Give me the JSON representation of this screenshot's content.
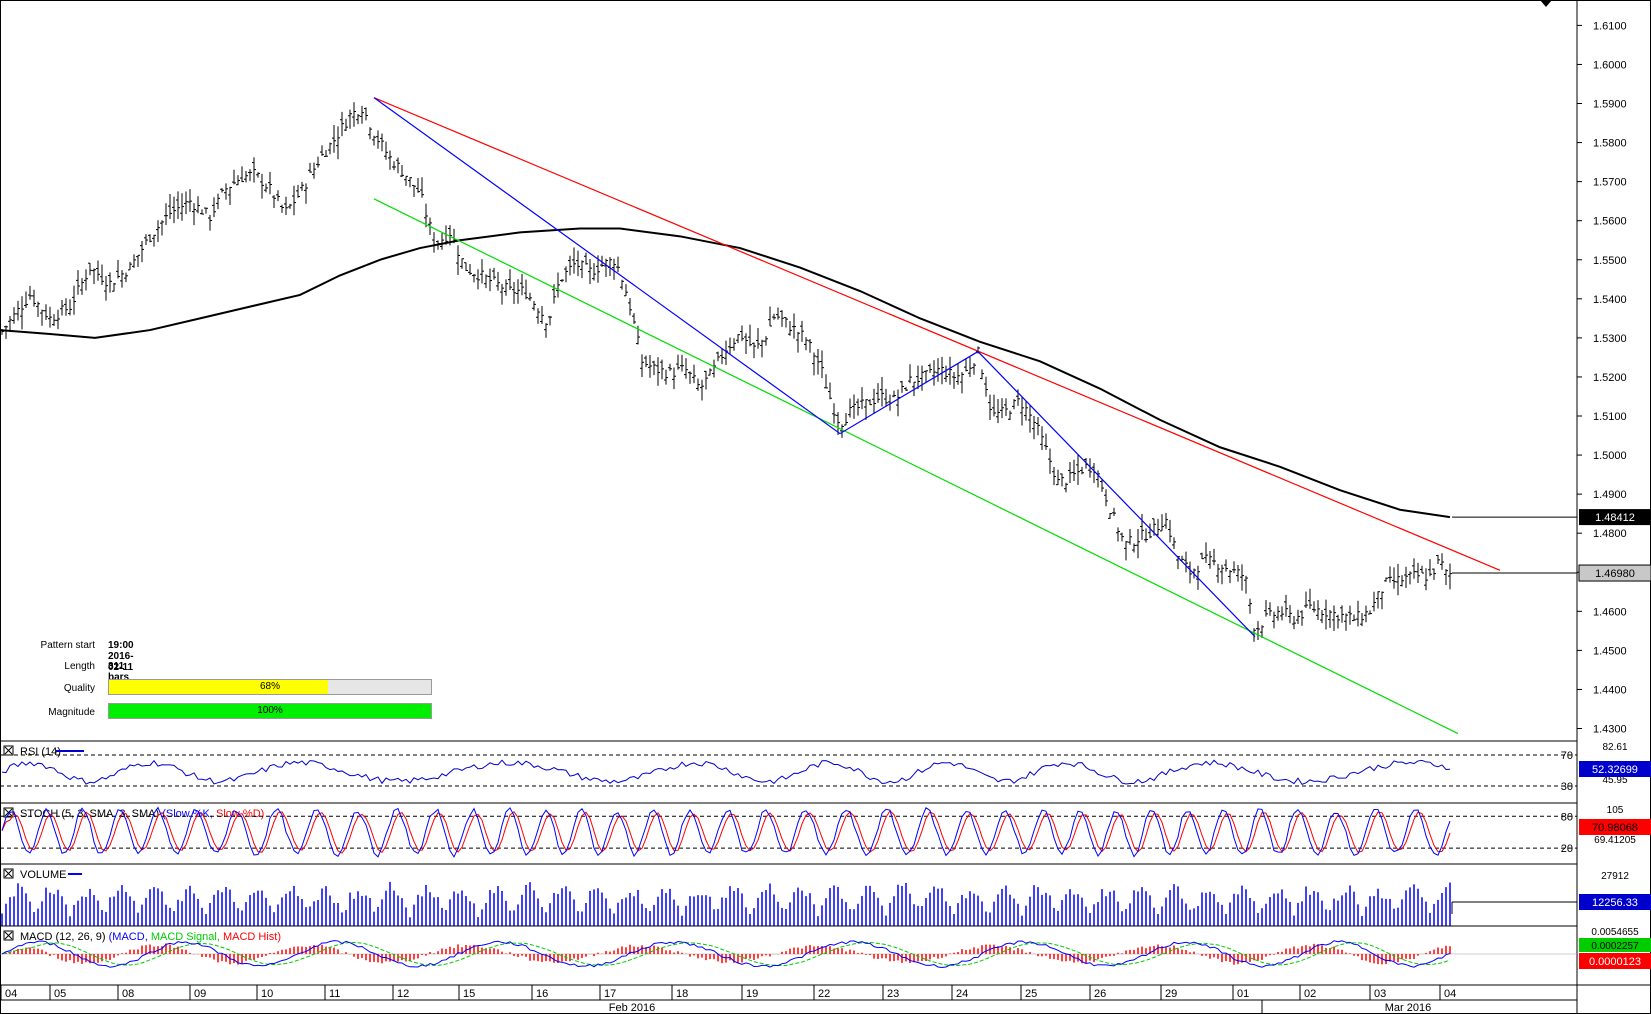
{
  "pattern_info": {
    "start_label": "Pattern start",
    "start_value": "19:00 2016-02-11",
    "length_label": "Length",
    "length_value": "311 bars",
    "quality_label": "Quality",
    "quality_text": "68%",
    "quality_fraction": 0.68,
    "magnitude_label": "Magnitude",
    "magnitude_text": "100%",
    "magnitude_fraction": 1.0
  },
  "chart_data": {
    "type": "candlestick",
    "price_axis": {
      "ylim": [
        1.4268,
        1.6165
      ],
      "ticks": [
        "1.6100",
        "1.6000",
        "1.5900",
        "1.5800",
        "1.5700",
        "1.5600",
        "1.5500",
        "1.5400",
        "1.5300",
        "1.5200",
        "1.5100",
        "1.5000",
        "1.4900",
        "1.4800",
        "1.4700",
        "1.4600",
        "1.4500",
        "1.4400",
        "1.4300"
      ],
      "ma_label": "1.48412",
      "ma_value": 1.48412,
      "last_label": "1.46980",
      "last_value": 1.4698
    },
    "x_axis": {
      "day_labels": [
        "04",
        "05",
        "08",
        "09",
        "10",
        "11",
        "12",
        "15",
        "16",
        "17",
        "18",
        "19",
        "22",
        "23",
        "24",
        "25",
        "26",
        "29",
        "01",
        "02",
        "03",
        "04"
      ],
      "month_labels": [
        "Feb 2016",
        "Mar 2016"
      ]
    },
    "price_path": [
      [
        0,
        1.531
      ],
      [
        15,
        1.536
      ],
      [
        30,
        1.541
      ],
      [
        50,
        1.535
      ],
      [
        70,
        1.538
      ],
      [
        90,
        1.548
      ],
      [
        110,
        1.544
      ],
      [
        130,
        1.548
      ],
      [
        150,
        1.556
      ],
      [
        170,
        1.562
      ],
      [
        190,
        1.565
      ],
      [
        210,
        1.561
      ],
      [
        225,
        1.568
      ],
      [
        240,
        1.571
      ],
      [
        255,
        1.572
      ],
      [
        270,
        1.568
      ],
      [
        285,
        1.562
      ],
      [
        300,
        1.567
      ],
      [
        320,
        1.576
      ],
      [
        335,
        1.581
      ],
      [
        350,
        1.587
      ],
      [
        362,
        1.589
      ],
      [
        375,
        1.582
      ],
      [
        390,
        1.576
      ],
      [
        405,
        1.572
      ],
      [
        420,
        1.567
      ],
      [
        435,
        1.554
      ],
      [
        450,
        1.557
      ],
      [
        465,
        1.548
      ],
      [
        480,
        1.546
      ],
      [
        495,
        1.544
      ],
      [
        510,
        1.542
      ],
      [
        525,
        1.542
      ],
      [
        540,
        1.537
      ],
      [
        548,
        1.534
      ],
      [
        560,
        1.545
      ],
      [
        575,
        1.549
      ],
      [
        590,
        1.547
      ],
      [
        605,
        1.549
      ],
      [
        615,
        1.55
      ],
      [
        625,
        1.543
      ],
      [
        632,
        1.536
      ],
      [
        642,
        1.524
      ],
      [
        655,
        1.522
      ],
      [
        670,
        1.521
      ],
      [
        685,
        1.522
      ],
      [
        700,
        1.517
      ],
      [
        712,
        1.521
      ],
      [
        725,
        1.527
      ],
      [
        740,
        1.531
      ],
      [
        755,
        1.527
      ],
      [
        765,
        1.53
      ],
      [
        775,
        1.536
      ],
      [
        790,
        1.533
      ],
      [
        805,
        1.53
      ],
      [
        820,
        1.523
      ],
      [
        832,
        1.513
      ],
      [
        840,
        1.508
      ],
      [
        850,
        1.511
      ],
      [
        865,
        1.513
      ],
      [
        880,
        1.515
      ],
      [
        895,
        1.514
      ],
      [
        910,
        1.519
      ],
      [
        925,
        1.52
      ],
      [
        940,
        1.522
      ],
      [
        955,
        1.52
      ],
      [
        965,
        1.521
      ],
      [
        978,
        1.526
      ],
      [
        985,
        1.519
      ],
      [
        992,
        1.51
      ],
      [
        1005,
        1.511
      ],
      [
        1020,
        1.514
      ],
      [
        1035,
        1.508
      ],
      [
        1045,
        1.502
      ],
      [
        1058,
        1.493
      ],
      [
        1070,
        1.494
      ],
      [
        1085,
        1.497
      ],
      [
        1095,
        1.497
      ],
      [
        1105,
        1.49
      ],
      [
        1115,
        1.483
      ],
      [
        1125,
        1.477
      ],
      [
        1140,
        1.479
      ],
      [
        1155,
        1.481
      ],
      [
        1165,
        1.484
      ],
      [
        1178,
        1.474
      ],
      [
        1190,
        1.47
      ],
      [
        1205,
        1.473
      ],
      [
        1220,
        1.472
      ],
      [
        1235,
        1.47
      ],
      [
        1245,
        1.469
      ],
      [
        1255,
        1.455
      ],
      [
        1265,
        1.458
      ],
      [
        1280,
        1.46
      ],
      [
        1295,
        1.458
      ],
      [
        1310,
        1.461
      ],
      [
        1325,
        1.46
      ],
      [
        1340,
        1.459
      ],
      [
        1355,
        1.458
      ],
      [
        1370,
        1.46
      ],
      [
        1385,
        1.467
      ],
      [
        1400,
        1.468
      ],
      [
        1415,
        1.469
      ],
      [
        1430,
        1.469
      ],
      [
        1440,
        1.473
      ],
      [
        1447,
        1.469
      ],
      [
        1452,
        1.4698
      ]
    ],
    "ma_path": [
      [
        0,
        1.532
      ],
      [
        50,
        1.531
      ],
      [
        95,
        1.53
      ],
      [
        150,
        1.532
      ],
      [
        200,
        1.535
      ],
      [
        250,
        1.538
      ],
      [
        300,
        1.541
      ],
      [
        340,
        1.546
      ],
      [
        380,
        1.55
      ],
      [
        420,
        1.553
      ],
      [
        460,
        1.555
      ],
      [
        520,
        1.557
      ],
      [
        580,
        1.558
      ],
      [
        620,
        1.558
      ],
      [
        680,
        1.556
      ],
      [
        740,
        1.553
      ],
      [
        800,
        1.548
      ],
      [
        860,
        1.542
      ],
      [
        920,
        1.535
      ],
      [
        980,
        1.529
      ],
      [
        1040,
        1.524
      ],
      [
        1100,
        1.517
      ],
      [
        1160,
        1.509
      ],
      [
        1220,
        1.502
      ],
      [
        1280,
        1.497
      ],
      [
        1340,
        1.491
      ],
      [
        1400,
        1.486
      ],
      [
        1450,
        1.48412
      ]
    ],
    "trendlines": {
      "resistance_red": [
        [
          374,
          1.5915
        ],
        [
          1500,
          1.4705
        ]
      ],
      "support_green": [
        [
          374,
          1.5656
        ],
        [
          1458,
          1.4287
        ]
      ],
      "zigzag_blue": [
        [
          374,
          1.5915
        ],
        [
          840,
          1.5055
        ],
        [
          978,
          1.5265
        ],
        [
          1255,
          1.4535
        ]
      ]
    },
    "rsi": {
      "label": "RSI (14)",
      "levels": [
        "70",
        "30"
      ],
      "top_label": "82.61",
      "value_label": "52.32699",
      "hidden_label": "45.95",
      "level_values": [
        70,
        30
      ],
      "ylim": [
        8,
        88
      ]
    },
    "stoch": {
      "label": "STOCH (5, 3, SMA, 3, SMA)",
      "series": [
        "Slow %K",
        "Slow %D"
      ],
      "levels": [
        "80",
        "20"
      ],
      "top_label": "105",
      "value_label": "70.98068",
      "hidden_label": "69.41205",
      "level_values": [
        80,
        20
      ],
      "ylim": [
        -10,
        105
      ]
    },
    "volume": {
      "label": "VOLUME",
      "top_label": "27912",
      "value_label": "12256.33",
      "max": 27912
    },
    "macd": {
      "label": "MACD (12, 26, 9)",
      "series": [
        "MACD",
        "MACD Signal",
        "MACD Hist"
      ],
      "top_label": "0.0054655",
      "signal_label": "0.0002257",
      "hist_label": "0.0000123"
    }
  },
  "colors": {
    "bars": "#000000",
    "ma": "#000000",
    "resistance": "#ff0000",
    "support": "#00dd00",
    "zigzag": "#0000ff",
    "rsi": "#0000cc",
    "stoch_k": "#0000ff",
    "stoch_d": "#ff0000",
    "volume": "#0000ff",
    "macd": "#0000ff",
    "macd_signal": "#00cc00",
    "macd_hist": "#ff0000",
    "quality_fill": "#ffff00",
    "magnitude_fill": "#00ee00"
  }
}
